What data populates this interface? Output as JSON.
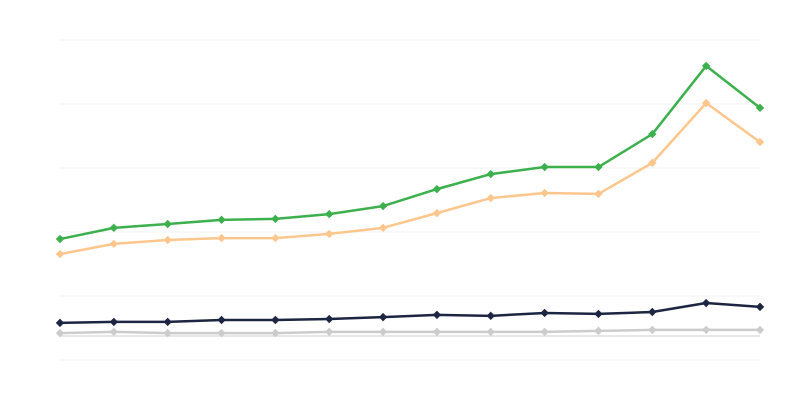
{
  "chart_data": {
    "type": "line",
    "categories": [
      null,
      null,
      null,
      null,
      null,
      null,
      null,
      null,
      null,
      null,
      null,
      null,
      null,
      null
    ],
    "series": [
      {
        "color": "#3cb04c",
        "values": [
          37.8,
          41.3,
          42.5,
          43.8,
          44.1,
          45.6,
          48.1,
          53.4,
          58.1,
          60.3,
          60.3,
          70.6,
          91.9,
          78.8
        ]
      },
      {
        "color": "#fdc68d",
        "values": [
          33.1,
          36.3,
          37.5,
          38.1,
          38.1,
          39.4,
          41.3,
          45.9,
          50.6,
          52.2,
          51.9,
          61.6,
          80.3,
          68.1
        ]
      },
      {
        "color": "#1c2541",
        "values": [
          11.6,
          11.9,
          11.9,
          12.5,
          12.5,
          12.8,
          13.4,
          14.1,
          13.8,
          14.7,
          14.4,
          15,
          17.8,
          16.6
        ]
      },
      {
        "color": "#cccccc",
        "values": [
          8.4,
          8.8,
          8.4,
          8.4,
          8.4,
          8.8,
          8.8,
          8.8,
          8.8,
          8.8,
          9.1,
          9.4,
          9.4,
          9.4
        ]
      }
    ],
    "ylim": [
      0,
      100
    ],
    "yticks": [
      0,
      20,
      40,
      60,
      80,
      100
    ],
    "grid": true
  }
}
